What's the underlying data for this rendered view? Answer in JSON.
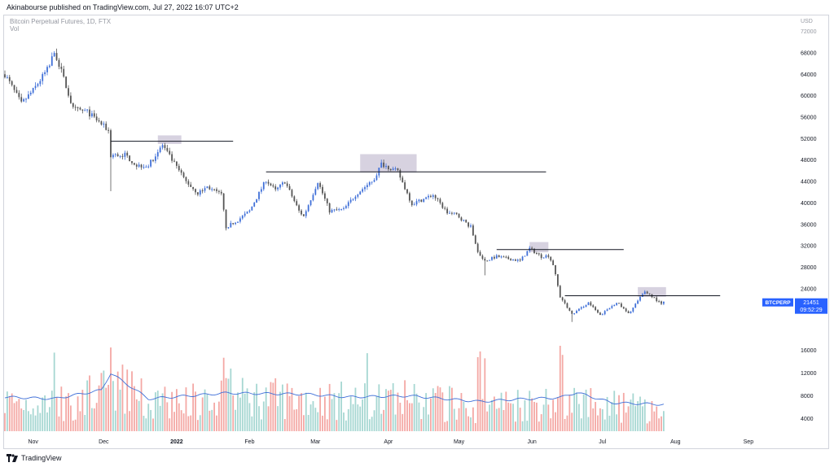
{
  "header": {
    "publisher_line": "Akinabourse published on TradingView.com, Jul 27, 2022 16:07 UTC+2"
  },
  "legend": {
    "symbol_line": "Bitcoin Perpetual Futures, 1D, FTX",
    "volume_label": "Vol"
  },
  "footer": {
    "brand": "TradingView"
  },
  "colors": {
    "up": "#3f6fd8",
    "down": "#555555",
    "vol_up": "#a6d7d2",
    "vol_down": "#f4a8a4",
    "vol_ma": "#3f6fd8",
    "label_bg": "#2962ff",
    "zone": "#c9c3d6"
  },
  "price_axis": {
    "unit": "USD",
    "ticks": [
      72000,
      68000,
      64000,
      60000,
      56000,
      52000,
      48000,
      44000,
      40000,
      36000,
      32000,
      28000,
      24000
    ]
  },
  "volume_axis": {
    "ticks": [
      16000,
      12000,
      8000,
      4000
    ]
  },
  "time_axis": {
    "labels": [
      "Nov",
      "Dec",
      "2022",
      "Feb",
      "Mar",
      "Apr",
      "May",
      "Jun",
      "Jul",
      "Aug",
      "Sep"
    ]
  },
  "price_label": {
    "symbol": "BTCPERP",
    "price": "21451",
    "countdown": "09:52:29"
  },
  "chart_data": {
    "type": "candlestick",
    "title": "Bitcoin Perpetual Futures, 1D, FTX",
    "x_range": [
      "2021-10-20",
      "2022-09-18"
    ],
    "ylim": [
      17000,
      73000
    ],
    "volume_ylim": [
      1800,
      17800
    ],
    "price_anchors": [
      [
        "2021-10-20",
        64000
      ],
      [
        "2021-10-27",
        58500
      ],
      [
        "2021-11-01",
        61000
      ],
      [
        "2021-11-08",
        65500
      ],
      [
        "2021-11-10",
        68500
      ],
      [
        "2021-11-13",
        64500
      ],
      [
        "2021-11-18",
        57500
      ],
      [
        "2021-11-24",
        57000
      ],
      [
        "2021-11-28",
        55500
      ],
      [
        "2021-12-03",
        53500
      ],
      [
        "2021-12-04",
        48800
      ],
      [
        "2021-12-10",
        49000
      ],
      [
        "2021-12-15",
        47000
      ],
      [
        "2021-12-20",
        47000
      ],
      [
        "2021-12-26",
        50800
      ],
      [
        "2021-12-30",
        48000
      ],
      [
        "2022-01-05",
        44000
      ],
      [
        "2022-01-10",
        41800
      ],
      [
        "2022-01-14",
        43000
      ],
      [
        "2022-01-20",
        41500
      ],
      [
        "2022-01-22",
        35500
      ],
      [
        "2022-01-27",
        36800
      ],
      [
        "2022-02-01",
        38500
      ],
      [
        "2022-02-08",
        44300
      ],
      [
        "2022-02-12",
        42300
      ],
      [
        "2022-02-16",
        44000
      ],
      [
        "2022-02-22",
        38500
      ],
      [
        "2022-02-24",
        37500
      ],
      [
        "2022-03-02",
        44000
      ],
      [
        "2022-03-07",
        38500
      ],
      [
        "2022-03-13",
        38800
      ],
      [
        "2022-03-18",
        41500
      ],
      [
        "2022-03-26",
        44500
      ],
      [
        "2022-03-29",
        47300
      ],
      [
        "2022-04-02",
        46500
      ],
      [
        "2022-04-05",
        45800
      ],
      [
        "2022-04-11",
        39800
      ],
      [
        "2022-04-20",
        41500
      ],
      [
        "2022-04-26",
        38200
      ],
      [
        "2022-04-30",
        37800
      ],
      [
        "2022-05-06",
        35500
      ],
      [
        "2022-05-09",
        31000
      ],
      [
        "2022-05-12",
        29200
      ],
      [
        "2022-05-17",
        30000
      ],
      [
        "2022-05-27",
        29200
      ],
      [
        "2022-05-31",
        31500
      ],
      [
        "2022-06-05",
        30000
      ],
      [
        "2022-06-08",
        30200
      ],
      [
        "2022-06-10",
        28500
      ],
      [
        "2022-06-13",
        22500
      ],
      [
        "2022-06-18",
        19200
      ],
      [
        "2022-06-25",
        21400
      ],
      [
        "2022-06-30",
        19000
      ],
      [
        "2022-07-07",
        21500
      ],
      [
        "2022-07-12",
        19300
      ],
      [
        "2022-07-19",
        23500
      ],
      [
        "2022-07-22",
        22600
      ],
      [
        "2022-07-26",
        21100
      ],
      [
        "2022-07-27",
        21451
      ]
    ],
    "notable_wicks": [
      {
        "date": "2021-12-04",
        "low": 42200
      },
      {
        "date": "2022-05-12",
        "low": 26500
      },
      {
        "date": "2022-06-18",
        "low": 17800
      }
    ],
    "volume_anchors": [
      [
        "2021-10-20",
        7800
      ],
      [
        "2021-11-10",
        7500
      ],
      [
        "2021-11-30",
        9000
      ],
      [
        "2021-12-04",
        12000
      ],
      [
        "2021-12-20",
        7500
      ],
      [
        "2022-01-22",
        8500
      ],
      [
        "2022-02-25",
        8300
      ],
      [
        "2022-03-15",
        7800
      ],
      [
        "2022-04-10",
        8000
      ],
      [
        "2022-05-10",
        7000
      ],
      [
        "2022-05-25",
        7400
      ],
      [
        "2022-06-13",
        7700
      ],
      [
        "2022-06-20",
        8600
      ],
      [
        "2022-07-05",
        6800
      ],
      [
        "2022-07-27",
        6500
      ]
    ],
    "volume_spikes": [
      {
        "date": "2021-11-10",
        "value": 15600
      },
      {
        "date": "2021-12-04",
        "value": 16500
      },
      {
        "date": "2022-01-21",
        "value": 14700
      },
      {
        "date": "2022-01-24",
        "value": 12800
      },
      {
        "date": "2022-03-23",
        "value": 15500
      },
      {
        "date": "2022-05-09",
        "value": 14800
      },
      {
        "date": "2022-05-10",
        "value": 15800
      },
      {
        "date": "2022-05-12",
        "value": 14600
      },
      {
        "date": "2022-06-13",
        "value": 16800
      },
      {
        "date": "2022-06-14",
        "value": 15200
      }
    ],
    "horizontal_lines": [
      {
        "start": "2021-12-04",
        "end": "2022-01-25",
        "price": 51500
      },
      {
        "start": "2022-02-08",
        "end": "2022-06-07",
        "price": 45800
      },
      {
        "start": "2022-05-17",
        "end": "2022-07-10",
        "price": 31300
      },
      {
        "start": "2022-06-15",
        "end": "2022-08-20",
        "price": 22700
      }
    ],
    "highlight_zones": [
      {
        "start": "2021-12-24",
        "end": "2022-01-03",
        "low": 51000,
        "high": 52600
      },
      {
        "start": "2022-03-20",
        "end": "2022-04-13",
        "low": 45700,
        "high": 49100
      },
      {
        "start": "2022-05-31",
        "end": "2022-06-08",
        "low": 30800,
        "high": 32700
      },
      {
        "start": "2022-07-16",
        "end": "2022-07-28",
        "low": 22500,
        "high": 24300
      }
    ]
  }
}
